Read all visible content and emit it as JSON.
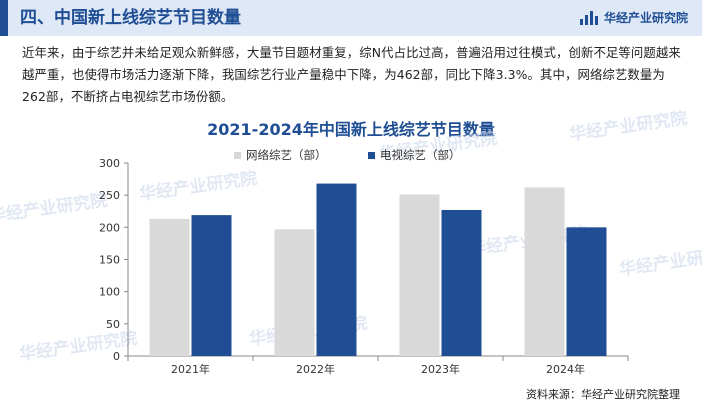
{
  "header": {
    "title": "四、中国新上线综艺节目数量",
    "brand": "华经产业研究院"
  },
  "intro": {
    "paragraph": "近年来，由于综艺并未给足观众新鲜感，大量节目题材重复，综N代占比过高，普遍沿用过往模式，创新不足等问题越来越严重，也使得市场活力逐渐下降，我国综艺行业产量稳中下降，为462部，同比下降3.3%。其中，网络综艺数量为262部，不断挤占电视综艺市场份额。"
  },
  "watermark": "华经产业研究院",
  "source": "资料来源：华经产业研究院整理",
  "colors": {
    "accent": "#1f4e94",
    "series_network": "#d9d9d9",
    "series_tv": "#1f4e94"
  },
  "chart_data": {
    "type": "bar",
    "title": "2021-2024年中国新上线综艺节目数量",
    "categories": [
      "2021年",
      "2022年",
      "2023年",
      "2024年"
    ],
    "series": [
      {
        "name": "网络综艺（部）",
        "values": [
          213,
          197,
          251,
          262
        ]
      },
      {
        "name": "电视综艺（部）",
        "values": [
          219,
          268,
          227,
          200
        ]
      }
    ],
    "ylim": [
      0,
      300
    ],
    "yticks": [
      0,
      50,
      100,
      150,
      200,
      250,
      300
    ],
    "grid": false,
    "legend": "top"
  }
}
